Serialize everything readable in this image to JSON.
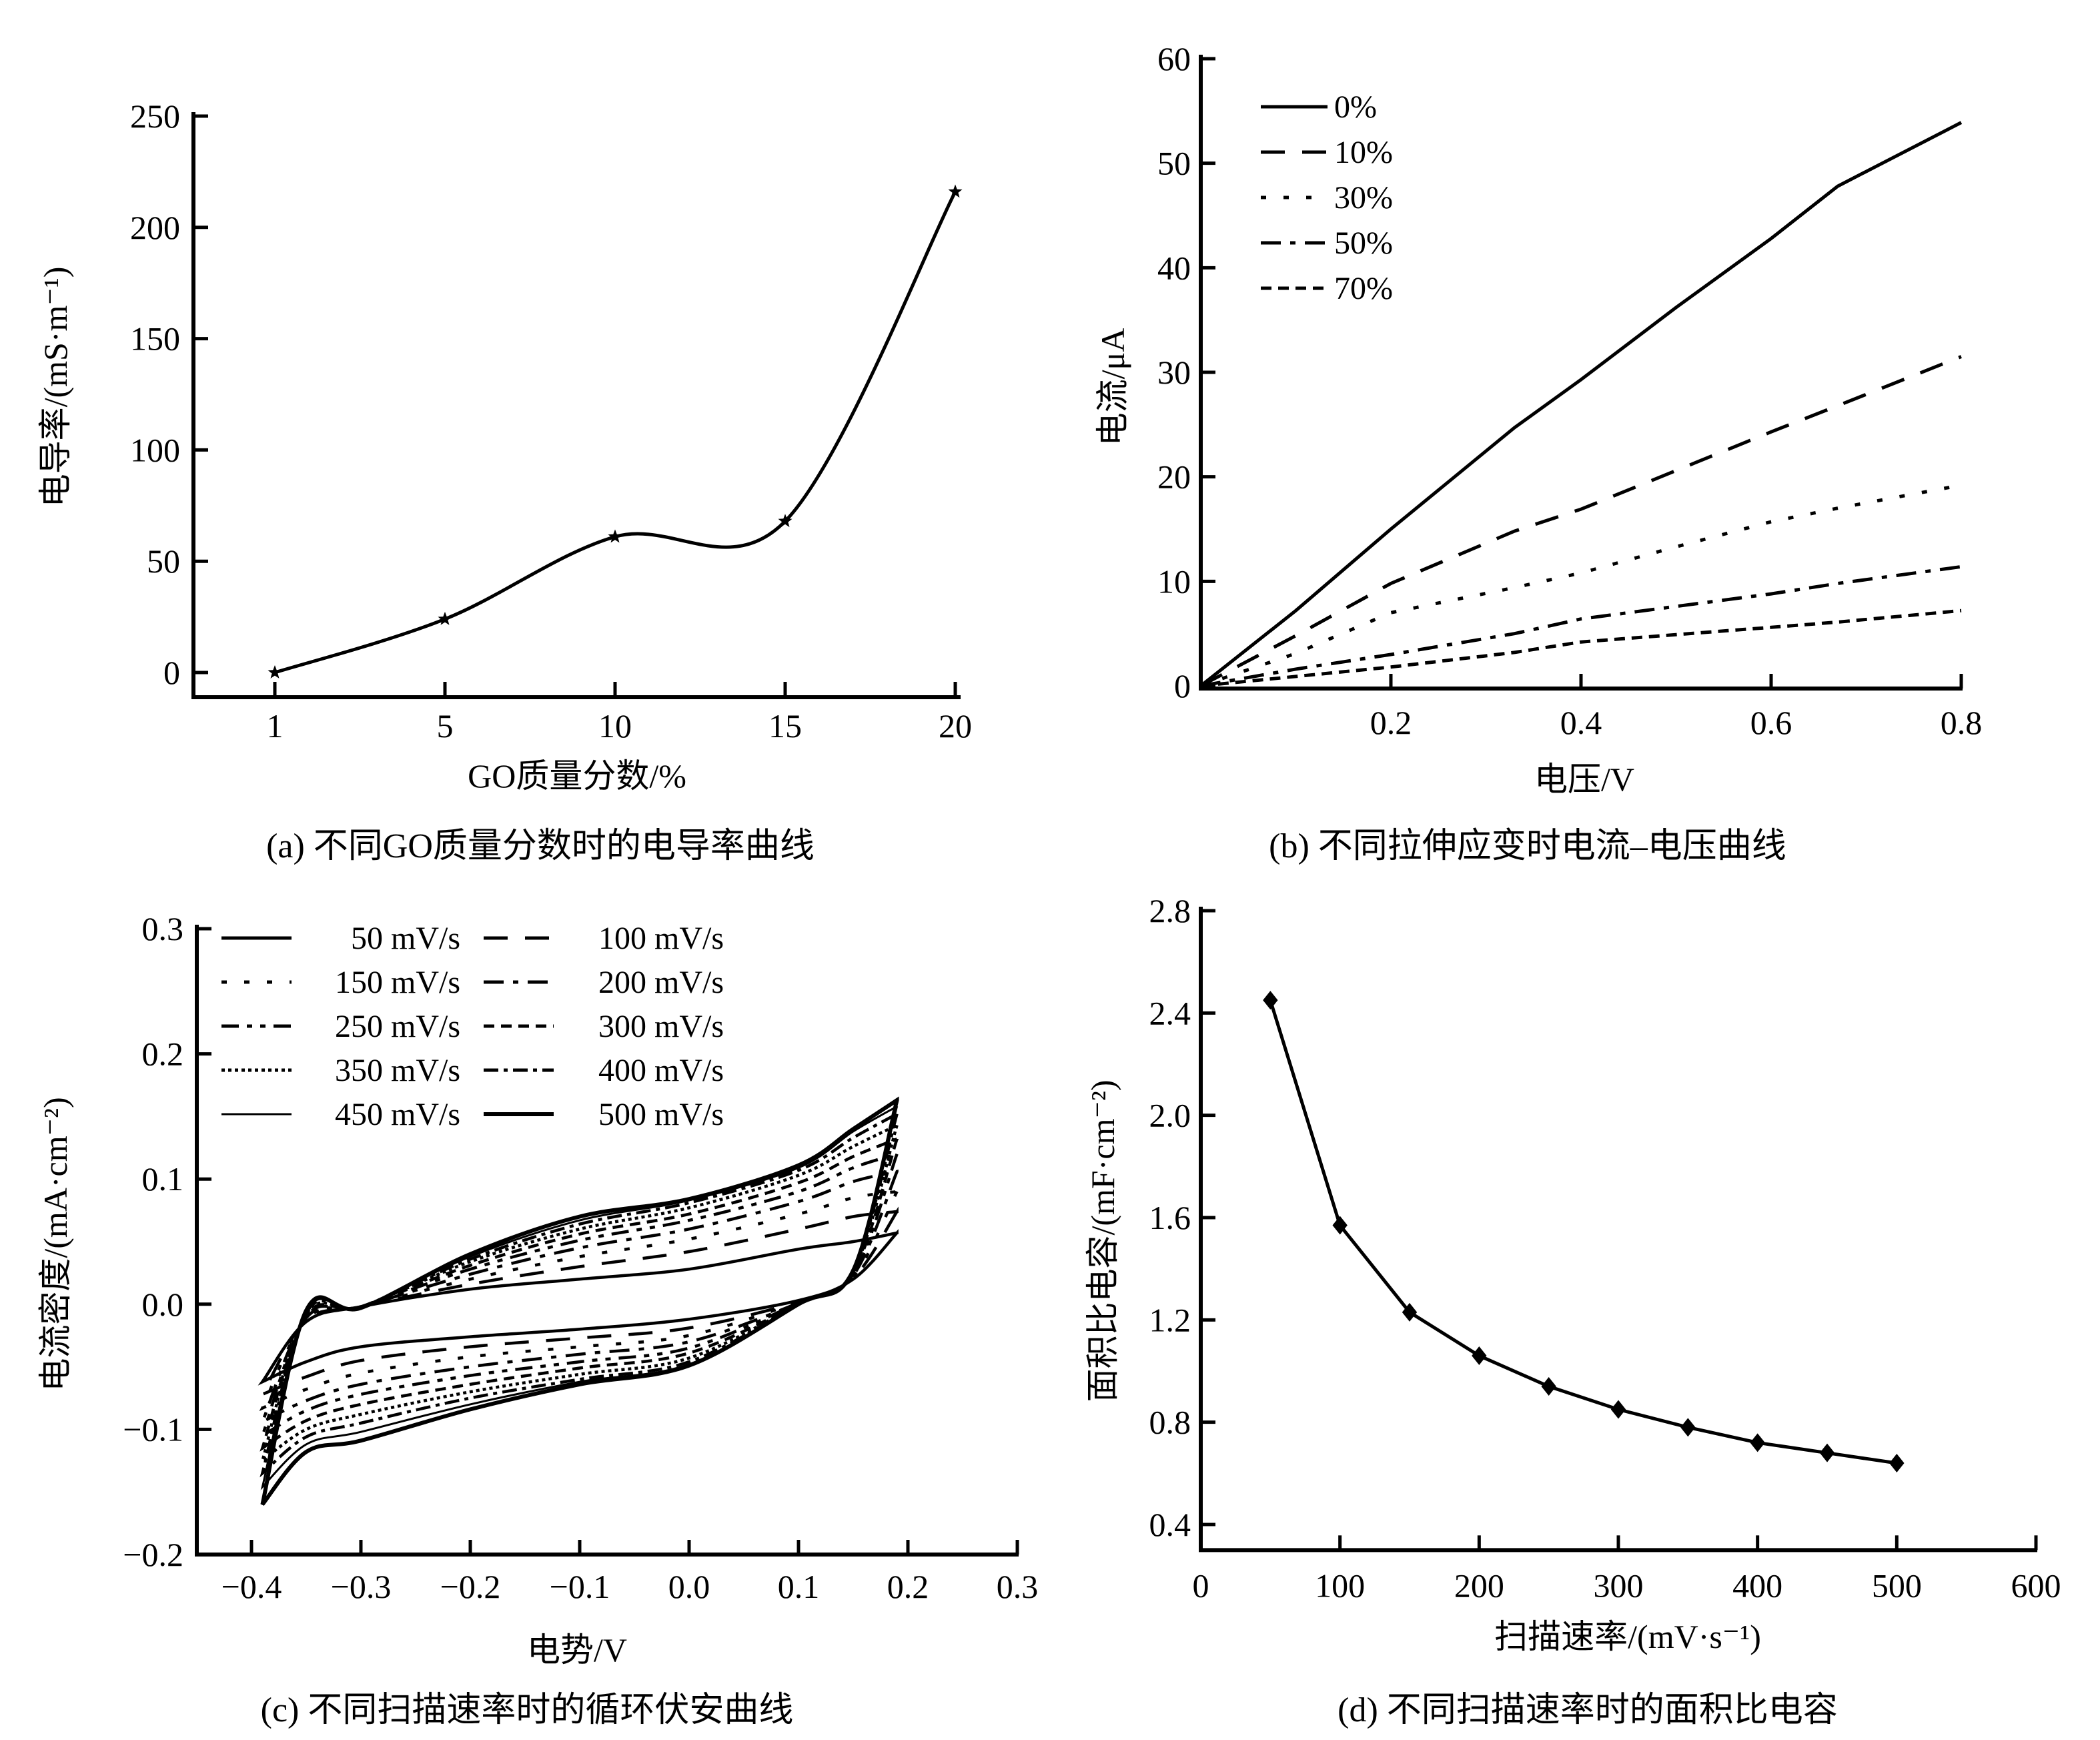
{
  "figure": {
    "panels": [
      "a",
      "b",
      "c",
      "d"
    ]
  },
  "chart_data": [
    {
      "id": "a",
      "type": "line",
      "caption": "(a) 不同GO质量分数时的电导率曲线",
      "xlabel": "GO质量分数/%",
      "ylabel": "电导率/(mS·m⁻¹)",
      "x_scale": "categorical",
      "categories": [
        "1",
        "5",
        "10",
        "15",
        "20"
      ],
      "xtick_labels": [
        "1",
        "5",
        "10",
        "15",
        "20"
      ],
      "ytick_labels": [
        "0",
        "50",
        "100",
        "150",
        "200",
        "250"
      ],
      "yticks": [
        0,
        50,
        100,
        150,
        200,
        250
      ],
      "ylim": [
        -10,
        250
      ],
      "marker": "star",
      "smooth": true,
      "series": [
        {
          "name": "电导率",
          "values": [
            0,
            24,
            61,
            68,
            216
          ]
        }
      ],
      "grid": false,
      "legend": "none"
    },
    {
      "id": "b",
      "type": "line",
      "caption": "(b) 不同拉伸应变时电流–电压曲线",
      "xlabel": "电压/V",
      "ylabel": "电流/μA",
      "xlim": [
        0,
        0.8
      ],
      "ylim": [
        0,
        60
      ],
      "xticks": [
        0.2,
        0.4,
        0.6,
        0.8
      ],
      "xtick_labels": [
        "0.2",
        "0.4",
        "0.6",
        "0.8"
      ],
      "yticks": [
        0,
        10,
        20,
        30,
        40,
        50,
        60
      ],
      "ytick_labels": [
        "0",
        "10",
        "20",
        "30",
        "40",
        "50",
        "60"
      ],
      "legend_position": "top-left",
      "grid": false,
      "x": [
        0,
        0.1,
        0.2,
        0.33,
        0.4,
        0.5,
        0.6,
        0.67,
        0.8
      ],
      "series": [
        {
          "name": "0%",
          "style": "solid",
          "values": [
            0,
            7.2,
            15,
            24.7,
            29.3,
            36.2,
            42.8,
            47.8,
            53.9
          ]
        },
        {
          "name": "10%",
          "style": "dash",
          "values": [
            0,
            4.8,
            9.8,
            14.8,
            16.9,
            20.6,
            24.3,
            26.8,
            31.5
          ]
        },
        {
          "name": "30%",
          "style": "dot",
          "values": [
            0,
            3.1,
            7.0,
            9.4,
            10.8,
            13.3,
            15.7,
            17.0,
            19.2
          ]
        },
        {
          "name": "50%",
          "style": "dash-dot",
          "values": [
            0,
            1.6,
            3.0,
            5.0,
            6.4,
            7.6,
            8.8,
            9.8,
            11.4
          ]
        },
        {
          "name": "70%",
          "style": "short-dash",
          "values": [
            0,
            0.9,
            1.8,
            3.2,
            4.2,
            4.9,
            5.6,
            6.1,
            7.2
          ]
        }
      ]
    },
    {
      "id": "c",
      "type": "line",
      "caption": "(c) 不同扫描速率时的循环伏安曲线",
      "xlabel": "电势/V",
      "ylabel": "电流密度/(mA·cm⁻²)",
      "xlim": [
        -0.45,
        0.3
      ],
      "ylim": [
        -0.2,
        0.3
      ],
      "xticks": [
        -0.4,
        -0.3,
        -0.2,
        -0.1,
        0.0,
        0.1,
        0.2,
        0.3
      ],
      "xtick_labels": [
        "−0.4",
        "−0.3",
        "−0.2",
        "−0.1",
        "0.0",
        "0.1",
        "0.2",
        "0.3"
      ],
      "yticks": [
        -0.2,
        -0.1,
        0.0,
        0.1,
        0.2,
        0.3
      ],
      "ytick_labels": [
        "−0.2",
        "−0.1",
        "0.0",
        "0.1",
        "0.2",
        "0.3"
      ],
      "legend_position": "top-left",
      "legend_columns": 2,
      "grid": false,
      "x": [
        -0.39,
        -0.35,
        -0.3,
        -0.2,
        -0.1,
        0.0,
        0.1,
        0.15,
        0.19
      ],
      "series": [
        {
          "name": "50 mV/s",
          "style": "solid",
          "upper": [
            -0.062,
            -0.014,
            -0.002,
            0.012,
            0.02,
            0.028,
            0.044,
            0.05,
            0.057
          ],
          "lower": [
            -0.062,
            -0.046,
            -0.034,
            -0.026,
            -0.02,
            -0.012,
            0.003,
            0.02,
            0.057
          ]
        },
        {
          "name": "100 mV/s",
          "style": "dash",
          "upper": [
            -0.072,
            -0.013,
            -0.002,
            0.016,
            0.03,
            0.042,
            0.06,
            0.07,
            0.074
          ],
          "lower": [
            -0.072,
            -0.058,
            -0.045,
            -0.034,
            -0.027,
            -0.019,
            0.002,
            0.021,
            0.074
          ]
        },
        {
          "name": "150 mV/s",
          "style": "dot",
          "upper": [
            -0.083,
            -0.012,
            -0.002,
            0.02,
            0.038,
            0.052,
            0.072,
            0.085,
            0.09
          ],
          "lower": [
            -0.083,
            -0.068,
            -0.055,
            -0.042,
            -0.034,
            -0.025,
            0.002,
            0.022,
            0.09
          ]
        },
        {
          "name": "200 mV/s",
          "style": "dash-dot",
          "upper": [
            -0.094,
            -0.011,
            -0.002,
            0.024,
            0.045,
            0.06,
            0.082,
            0.098,
            0.106
          ],
          "lower": [
            -0.094,
            -0.077,
            -0.064,
            -0.05,
            -0.04,
            -0.03,
            0.001,
            0.023,
            0.106
          ]
        },
        {
          "name": "250 mV/s",
          "style": "dash-dot-dot",
          "upper": [
            -0.105,
            -0.01,
            -0.002,
            0.028,
            0.051,
            0.067,
            0.09,
            0.109,
            0.12
          ],
          "lower": [
            -0.105,
            -0.085,
            -0.072,
            -0.057,
            -0.046,
            -0.035,
            0.001,
            0.024,
            0.12
          ]
        },
        {
          "name": "300 mV/s",
          "style": "short-dash",
          "upper": [
            -0.115,
            -0.009,
            -0.002,
            0.031,
            0.056,
            0.072,
            0.097,
            0.118,
            0.132
          ],
          "lower": [
            -0.115,
            -0.093,
            -0.08,
            -0.064,
            -0.051,
            -0.039,
            0.0,
            0.025,
            0.132
          ]
        },
        {
          "name": "350 mV/s",
          "style": "fine-dot",
          "upper": [
            -0.125,
            -0.008,
            -0.002,
            0.034,
            0.06,
            0.077,
            0.103,
            0.126,
            0.143
          ],
          "lower": [
            -0.125,
            -0.1,
            -0.088,
            -0.07,
            -0.056,
            -0.043,
            0.0,
            0.026,
            0.143
          ]
        },
        {
          "name": "400 mV/s",
          "style": "dash-dot-fine",
          "upper": [
            -0.135,
            -0.007,
            -0.002,
            0.036,
            0.064,
            0.081,
            0.107,
            0.133,
            0.152
          ],
          "lower": [
            -0.135,
            -0.106,
            -0.095,
            -0.075,
            -0.06,
            -0.046,
            0.0,
            0.027,
            0.152
          ]
        },
        {
          "name": "450 mV/s",
          "style": "thin-solid",
          "upper": [
            -0.146,
            -0.006,
            -0.002,
            0.038,
            0.067,
            0.083,
            0.109,
            0.138,
            0.158
          ],
          "lower": [
            -0.146,
            -0.112,
            -0.102,
            -0.08,
            -0.062,
            -0.048,
            0.0,
            0.027,
            0.158
          ]
        },
        {
          "name": "500 mV/s",
          "style": "thick-solid",
          "upper": [
            -0.16,
            -0.005,
            -0.003,
            0.04,
            0.07,
            0.084,
            0.111,
            0.14,
            0.163
          ],
          "lower": [
            -0.16,
            -0.118,
            -0.109,
            -0.084,
            -0.064,
            -0.049,
            0.0,
            0.027,
            0.163
          ]
        }
      ]
    },
    {
      "id": "d",
      "type": "line",
      "caption": "(d) 不同扫描速率时的面积比电容",
      "xlabel": "扫描速率/(mV·s⁻¹)",
      "ylabel": "面积比电容/(mF·cm⁻²)",
      "xlim": [
        0,
        600
      ],
      "ylim": [
        0.3,
        2.8
      ],
      "xticks": [
        0,
        100,
        200,
        300,
        400,
        500,
        600
      ],
      "xtick_labels": [
        "0",
        "100",
        "200",
        "300",
        "400",
        "500",
        "600"
      ],
      "yticks": [
        0.4,
        0.8,
        1.2,
        1.6,
        2.0,
        2.4,
        2.8
      ],
      "ytick_labels": [
        "0.4",
        "0.8",
        "1.2",
        "1.6",
        "2.0",
        "2.4",
        "2.8"
      ],
      "marker": "diamond",
      "grid": false,
      "legend": "none",
      "x": [
        50,
        100,
        150,
        200,
        250,
        300,
        350,
        400,
        450,
        500
      ],
      "series": [
        {
          "name": "面积比电容",
          "values": [
            2.45,
            1.57,
            1.23,
            1.06,
            0.94,
            0.85,
            0.78,
            0.72,
            0.68,
            0.64
          ]
        }
      ]
    }
  ]
}
